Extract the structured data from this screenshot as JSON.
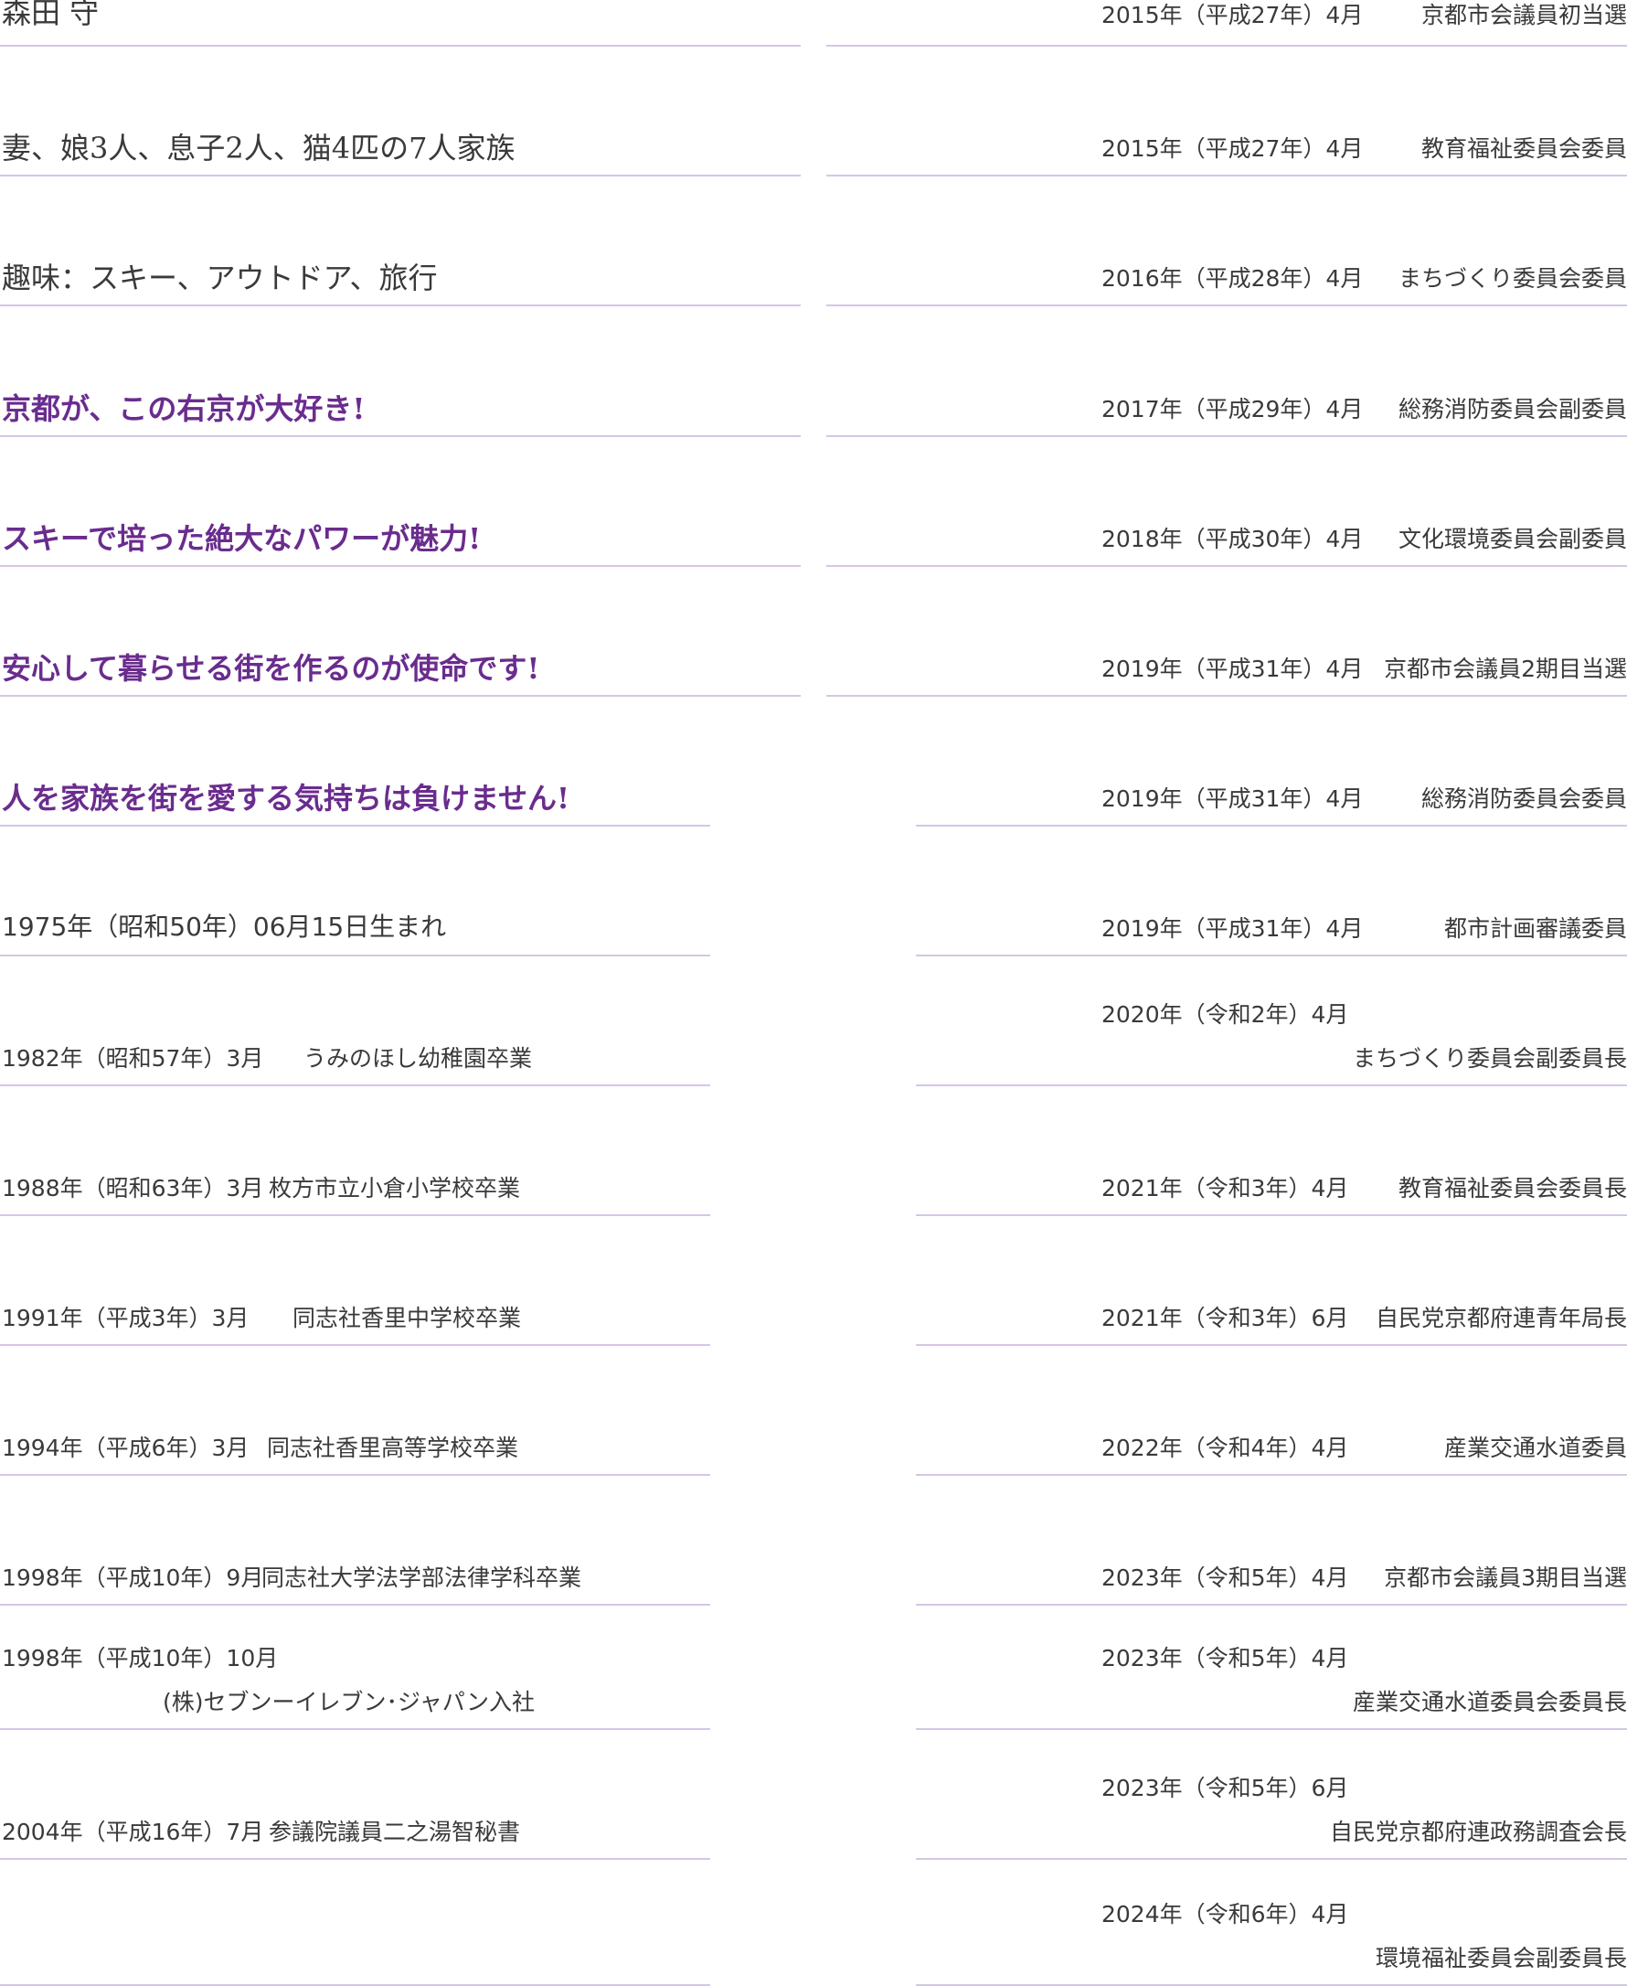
{
  "profile": {
    "name": "森田 守",
    "family": "妻、娘3人、息子2人、猫4匹の7人家族",
    "hobby": "趣味：スキー、アウトドア、旅行"
  },
  "slogans": [
    "京都が、この右京が大好き!",
    "スキーで培った絶大なパワーが魅力!",
    "安心して暮らせる街を作るのが使命です!",
    "人を家族を街を愛する気持ちは負けません!"
  ],
  "birth": "1975年（昭和50年）06月15日生まれ",
  "history": [
    {
      "date": "1982年（昭和57年）3月",
      "event": "うみのほし幼稚園卒業"
    },
    {
      "date": "1988年（昭和63年）3月",
      "event": "枚方市立小倉小学校卒業"
    },
    {
      "date": "1991年（平成3年）3月",
      "event": "同志社香里中学校卒業"
    },
    {
      "date": "1994年（平成6年）3月",
      "event": "同志社香里高等学校卒業"
    },
    {
      "date": "1998年（平成10年）9月",
      "event": "同志社大学法学部法律学科卒業"
    },
    {
      "date": "1998年（平成10年）10月",
      "event": "(株)セブンーイレブン･ジャパン入社"
    },
    {
      "date": "2004年（平成16年）7月",
      "event": "参議院議員二之湯智秘書"
    }
  ],
  "career": [
    {
      "date": "2015年（平成27年）4月",
      "event": "京都市会議員初当選"
    },
    {
      "date": "2015年（平成27年）4月",
      "event": "教育福祉委員会委員"
    },
    {
      "date": "2016年（平成28年）4月",
      "event": "まちづくり委員会委員"
    },
    {
      "date": "2017年（平成29年）4月",
      "event": "総務消防委員会副委員"
    },
    {
      "date": "2018年（平成30年）4月",
      "event": "文化環境委員会副委員"
    },
    {
      "date": "2019年（平成31年）4月",
      "event": "京都市会議員2期目当選"
    },
    {
      "date": "2019年（平成31年）4月",
      "event": "総務消防委員会委員"
    },
    {
      "date": "2019年（平成31年）4月",
      "event": "都市計画審議委員"
    },
    {
      "date": "2020年（令和2年）4月",
      "event": "まちづくり委員会副委員長"
    },
    {
      "date": "2021年（令和3年）4月",
      "event": "教育福祉委員会委員長"
    },
    {
      "date": "2021年（令和3年）6月",
      "event": "自民党京都府連青年局長"
    },
    {
      "date": "2022年（令和4年）4月",
      "event": "産業交通水道委員"
    },
    {
      "date": "2023年（令和5年）4月",
      "event": "京都市会議員3期目当選"
    },
    {
      "date": "2023年（令和5年）4月",
      "event": "産業交通水道委員会委員長"
    },
    {
      "date": "2023年（令和5年）6月",
      "event": "自民党京都府連政務調査会長"
    },
    {
      "date": "2024年（令和6年）4月",
      "event": "環境福祉委員会副委員長"
    }
  ]
}
